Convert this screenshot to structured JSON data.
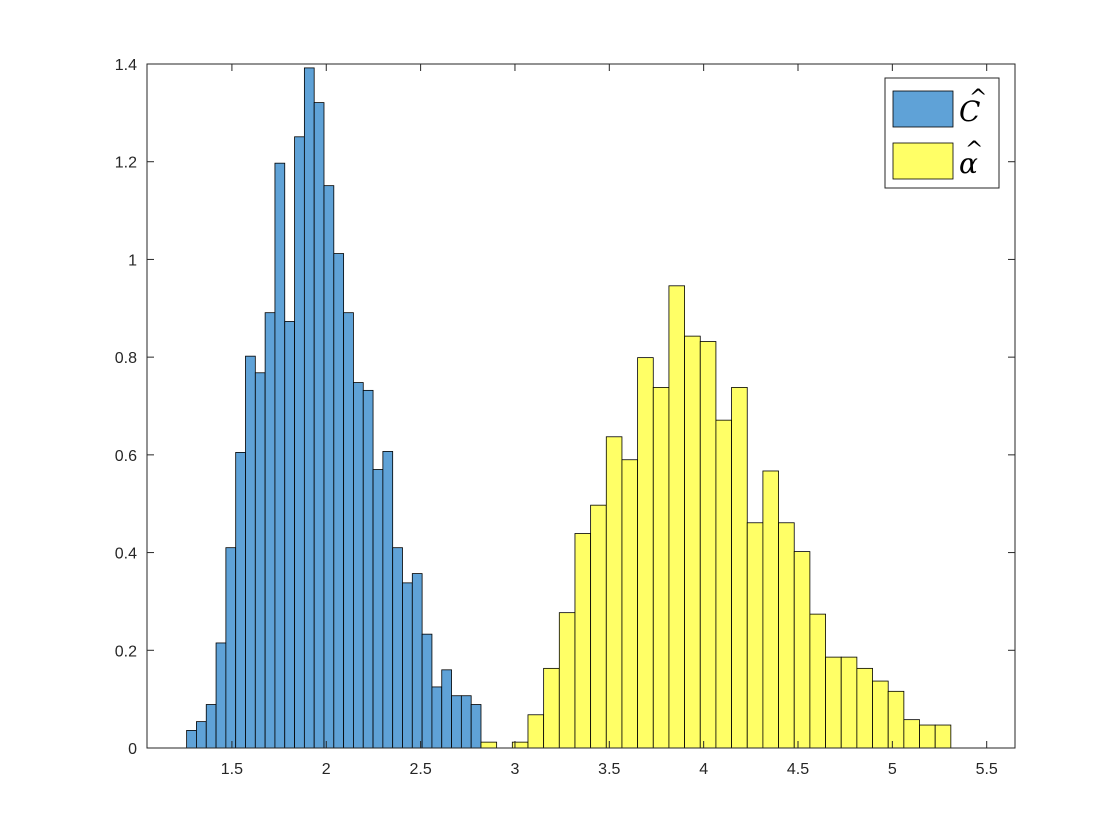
{
  "chart_data": {
    "type": "bar",
    "title": "",
    "xlabel": "",
    "ylabel": "",
    "xlim": [
      1.05,
      5.65
    ],
    "ylim": [
      0,
      1.4
    ],
    "xticks": [
      "1.5",
      "2",
      "2.5",
      "3",
      "3.5",
      "4",
      "4.5",
      "5",
      "5.5"
    ],
    "yticks": [
      "0",
      "0.2",
      "0.4",
      "0.6",
      "0.8",
      "1",
      "1.2",
      "1.4"
    ],
    "grid": false,
    "legend_position": "top-right",
    "series": [
      {
        "name": "Ĉ",
        "legend_symbol": "C",
        "color": "#5fa2d7",
        "bin_width": 0.052,
        "bins": [
          [
            1.26,
            0.036
          ],
          [
            1.312,
            0.054
          ],
          [
            1.364,
            0.089
          ],
          [
            1.416,
            0.215
          ],
          [
            1.468,
            0.41
          ],
          [
            1.52,
            0.605
          ],
          [
            1.572,
            0.802
          ],
          [
            1.624,
            0.768
          ],
          [
            1.676,
            0.891
          ],
          [
            1.728,
            1.197
          ],
          [
            1.78,
            0.873
          ],
          [
            1.832,
            1.251
          ],
          [
            1.884,
            1.392
          ],
          [
            1.936,
            1.321
          ],
          [
            1.988,
            1.151
          ],
          [
            2.04,
            1.012
          ],
          [
            2.092,
            0.891
          ],
          [
            2.144,
            0.748
          ],
          [
            2.196,
            0.732
          ],
          [
            2.248,
            0.57
          ],
          [
            2.3,
            0.607
          ],
          [
            2.352,
            0.41
          ],
          [
            2.404,
            0.338
          ],
          [
            2.456,
            0.357
          ],
          [
            2.508,
            0.233
          ],
          [
            2.56,
            0.125
          ],
          [
            2.612,
            0.16
          ],
          [
            2.664,
            0.107
          ],
          [
            2.716,
            0.107
          ],
          [
            2.768,
            0.089
          ]
        ]
      },
      {
        "name": "α̂",
        "legend_symbol": "α",
        "color": "#ffff66",
        "bin_width": 0.083,
        "bins": [
          [
            2.82,
            0.012
          ],
          [
            2.986,
            0.012
          ],
          [
            3.069,
            0.068
          ],
          [
            3.152,
            0.163
          ],
          [
            3.235,
            0.277
          ],
          [
            3.318,
            0.439
          ],
          [
            3.401,
            0.497
          ],
          [
            3.484,
            0.637
          ],
          [
            3.567,
            0.59
          ],
          [
            3.65,
            0.799
          ],
          [
            3.733,
            0.738
          ],
          [
            3.816,
            0.946
          ],
          [
            3.899,
            0.843
          ],
          [
            3.982,
            0.832
          ],
          [
            4.065,
            0.671
          ],
          [
            4.148,
            0.738
          ],
          [
            4.231,
            0.461
          ],
          [
            4.314,
            0.567
          ],
          [
            4.397,
            0.461
          ],
          [
            4.48,
            0.402
          ],
          [
            4.563,
            0.274
          ],
          [
            4.646,
            0.186
          ],
          [
            4.729,
            0.186
          ],
          [
            4.812,
            0.163
          ],
          [
            4.895,
            0.137
          ],
          [
            4.978,
            0.116
          ],
          [
            5.061,
            0.058
          ],
          [
            5.144,
            0.047
          ],
          [
            5.227,
            0.047
          ]
        ]
      }
    ]
  }
}
